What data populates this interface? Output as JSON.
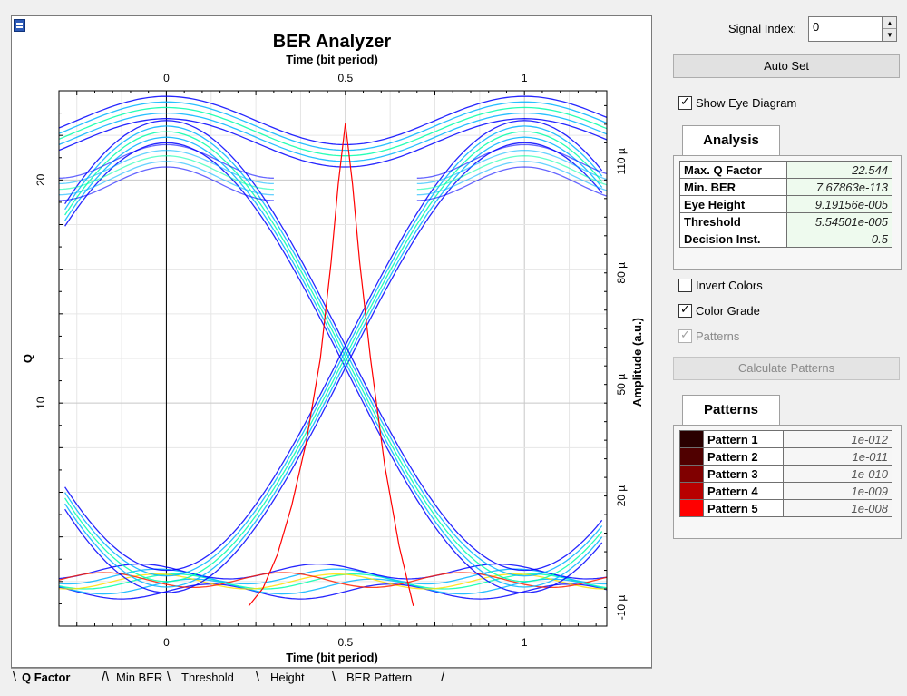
{
  "chart_data": {
    "type": "line",
    "title": "BER Analyzer",
    "top_xlabel": "Time (bit period)",
    "xlabel": "Time (bit period)",
    "ylabel_left": "Q",
    "ylabel_right": "Amplitude (a.u.)",
    "xlim": [
      -0.3,
      1.23
    ],
    "ylim_left": [
      0,
      24
    ],
    "ylim_right": [
      -1.5e-05,
      0.000129
    ],
    "x_ticks": [
      0,
      0.5,
      1
    ],
    "x_tick_labels": [
      "0",
      "0.5",
      "1"
    ],
    "y_left_ticks": [
      10,
      20
    ],
    "y_left_tick_labels": [
      "10",
      "20"
    ],
    "y_right_ticks": [
      -1e-05,
      2e-05,
      5e-05,
      8e-05,
      0.00011
    ],
    "y_right_tick_labels": [
      "-10 µ",
      "20 µ",
      "50 µ",
      "80 µ",
      "110 µ"
    ],
    "grid": true,
    "eye_diagram": {
      "bit_period": 1,
      "level_one": 0.000118,
      "level_zero": -3e-06,
      "ripple": 6.5e-06,
      "spread": 3e-06,
      "color_grade": [
        "#0000ff",
        "#00b4ff",
        "#00ffaa",
        "#ffe000",
        "#ff2000"
      ]
    },
    "q_factor_curve": {
      "name": "Q",
      "color": "#ff0000",
      "x": [
        0.23,
        0.27,
        0.31,
        0.35,
        0.39,
        0.43,
        0.46,
        0.48,
        0.5,
        0.52,
        0.54,
        0.57,
        0.61,
        0.65,
        0.69
      ],
      "y": [
        0.9,
        1.7,
        3.2,
        5.4,
        8.2,
        12.0,
        16.3,
        19.8,
        22.544,
        19.8,
        16.3,
        12.0,
        7.2,
        3.6,
        0.9
      ]
    }
  },
  "bottom_tabs": [
    "Q Factor",
    "Min BER",
    "Threshold",
    "Height",
    "BER Pattern"
  ],
  "panel": {
    "signal_index_label": "Signal Index:",
    "signal_index_value": "0",
    "auto_set_label": "Auto Set",
    "show_eye_label": "Show Eye Diagram",
    "show_eye_checked": true,
    "analysis_tab_label": "Analysis",
    "analysis": [
      {
        "key": "Max. Q Factor",
        "value": "22.544"
      },
      {
        "key": "Min. BER",
        "value": "7.67863e-113"
      },
      {
        "key": "Eye Height",
        "value": "9.19156e-005"
      },
      {
        "key": "Threshold",
        "value": "5.54501e-005"
      },
      {
        "key": "Decision Inst.",
        "value": "0.5"
      }
    ],
    "invert_colors_label": "Invert Colors",
    "invert_colors_checked": false,
    "color_grade_label": "Color Grade",
    "color_grade_checked": true,
    "patterns_check_label": "Patterns",
    "patterns_check_checked": true,
    "calculate_patterns_label": "Calculate Patterns",
    "patterns_tab_label": "Patterns",
    "patterns": [
      {
        "name": "Pattern 1",
        "value": "1e-012",
        "color": "#2a0000"
      },
      {
        "name": "Pattern 2",
        "value": "1e-011",
        "color": "#500000"
      },
      {
        "name": "Pattern 3",
        "value": "1e-010",
        "color": "#800000"
      },
      {
        "name": "Pattern 4",
        "value": "1e-009",
        "color": "#b80000"
      },
      {
        "name": "Pattern 5",
        "value": "1e-008",
        "color": "#ff0000"
      }
    ]
  }
}
